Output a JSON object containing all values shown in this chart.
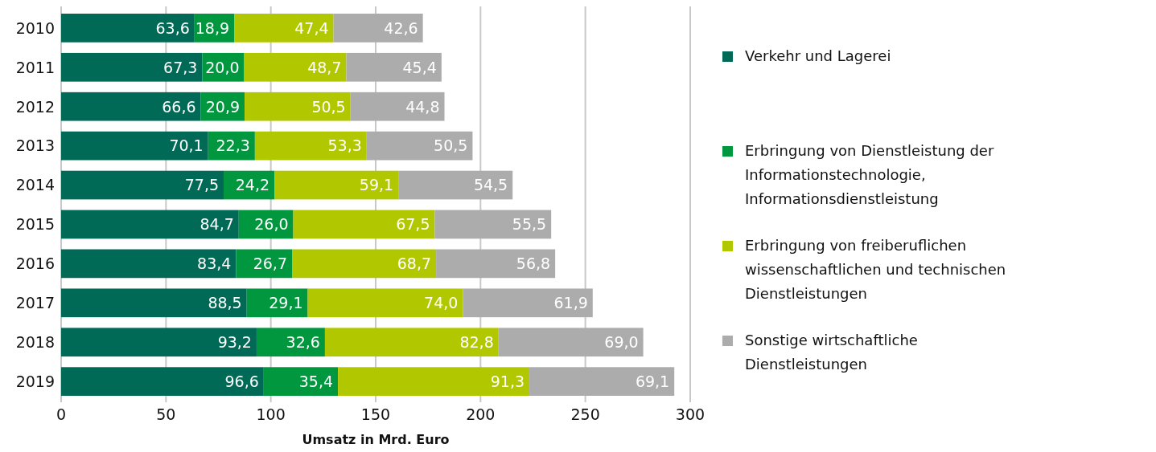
{
  "chart_data": {
    "type": "bar",
    "orientation": "horizontal",
    "stacked": true,
    "xlabel": "Umsatz in Mrd. Euro",
    "categories": [
      "2010",
      "2011",
      "2012",
      "2013",
      "2014",
      "2015",
      "2016",
      "2017",
      "2018",
      "2019"
    ],
    "series": [
      {
        "name": "Verkehr und Lagerei",
        "color": "#006a56",
        "values": [
          63.6,
          67.3,
          66.6,
          70.1,
          77.5,
          84.7,
          83.4,
          88.5,
          93.2,
          96.6
        ],
        "value_labels": [
          "63,6",
          "67,3",
          "66,6",
          "70,1",
          "77,5",
          "84,7",
          "83,4",
          "88,5",
          "93,2",
          "96,6"
        ]
      },
      {
        "name": "Erbringung von Dienstleistung der Informationstechnologie, Informationsdienstleistung",
        "color": "#00973f",
        "values": [
          18.9,
          20.0,
          20.9,
          22.3,
          24.2,
          26.0,
          26.7,
          29.1,
          32.6,
          35.4
        ],
        "value_labels": [
          "18,9",
          "20,0",
          "20,9",
          "22,3",
          "24,2",
          "26,0",
          "26,7",
          "29,1",
          "32,6",
          "35,4"
        ]
      },
      {
        "name": "Erbringung von freiberuflichen wissenschaftlichen und technischen Dienstleistungen",
        "color": "#b1c800",
        "values": [
          47.4,
          48.7,
          50.5,
          53.3,
          59.1,
          67.5,
          68.7,
          74.0,
          82.8,
          91.3
        ],
        "value_labels": [
          "47,4",
          "48,7",
          "50,5",
          "53,3",
          "59,1",
          "67,5",
          "68,7",
          "74,0",
          "82,8",
          "91,3"
        ]
      },
      {
        "name": "Sonstige wirtschaftliche Dienstleistungen",
        "color": "#acacac",
        "values": [
          42.6,
          45.4,
          44.8,
          50.5,
          54.5,
          55.5,
          56.8,
          61.9,
          69.0,
          69.1
        ],
        "value_labels": [
          "42,6",
          "45,4",
          "44,8",
          "50,5",
          "54,5",
          "55,5",
          "56,8",
          "61,9",
          "69,0",
          "69,1"
        ]
      }
    ],
    "xlim": [
      0,
      300
    ],
    "xticks": [
      0,
      50,
      100,
      150,
      200,
      250,
      300
    ],
    "grid": "x",
    "legend": "right"
  }
}
